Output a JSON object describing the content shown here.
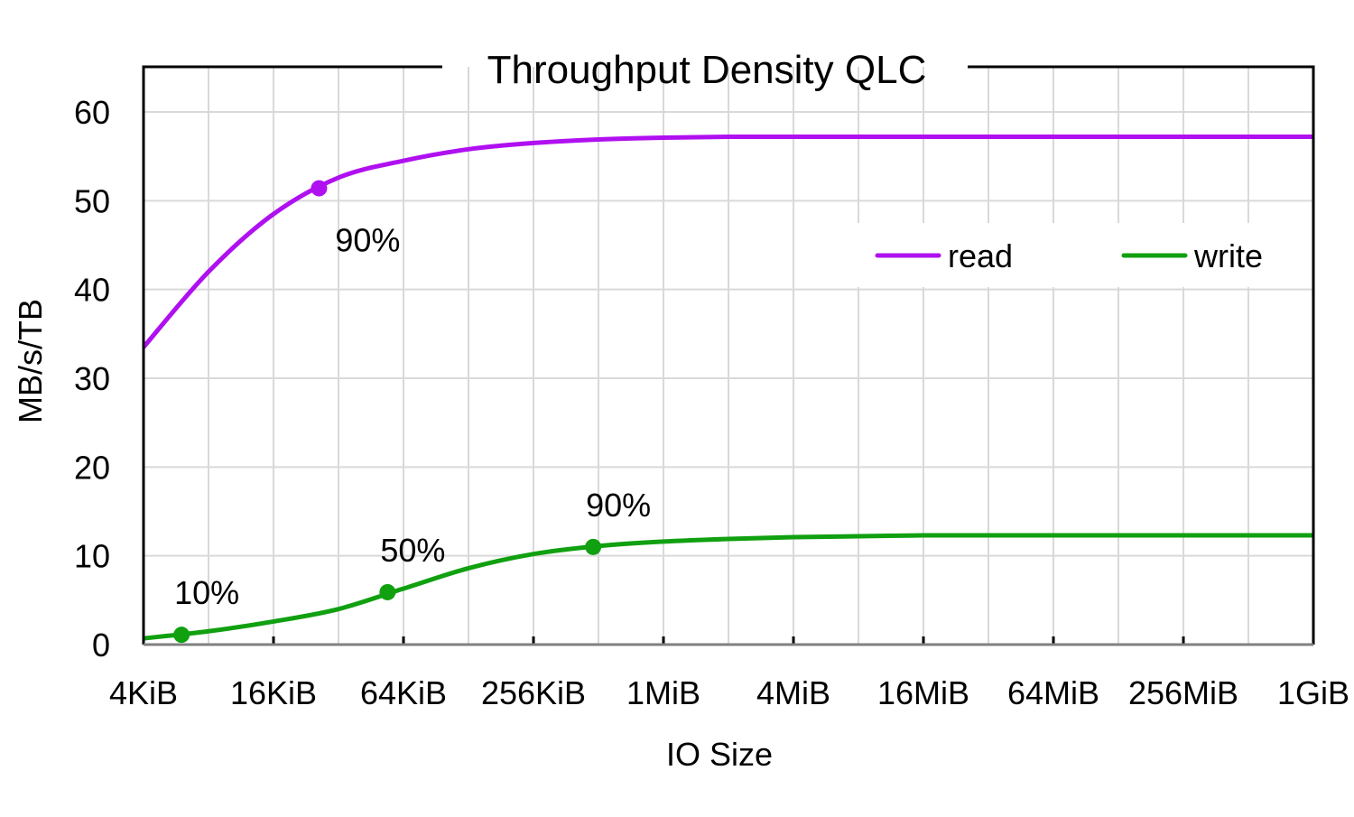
{
  "chart_data": {
    "type": "line",
    "title": "Throughput Density QLC",
    "xlabel": "IO Size",
    "ylabel": "MB/s/TB",
    "x_scale": "log2",
    "x_unit": "KiB",
    "xlim_kib": [
      4,
      1048576
    ],
    "ylim": [
      0,
      60
    ],
    "yticks": [
      0,
      10,
      20,
      30,
      40,
      50,
      60
    ],
    "xtick_labels": [
      "4KiB",
      "16KiB",
      "64KiB",
      "256KiB",
      "1MiB",
      "4MiB",
      "16MiB",
      "64MiB",
      "256MiB",
      "1GiB"
    ],
    "grid": true,
    "legend_position": "top-right",
    "x_kib": [
      4,
      8,
      16,
      32,
      64,
      128,
      256,
      512,
      1024,
      2048,
      4096,
      8192,
      16384,
      32768,
      65536,
      131072,
      262144,
      524288,
      1048576
    ],
    "series": [
      {
        "name": "read",
        "color": "#b010f0",
        "values": [
          33.5,
          42.0,
          48.5,
          52.6,
          54.5,
          55.8,
          56.5,
          56.9,
          57.1,
          57.2,
          57.2,
          57.2,
          57.2,
          57.2,
          57.2,
          57.2,
          57.2,
          57.2,
          57.2
        ],
        "markers": [
          {
            "x_kib": 26,
            "y": 51.4,
            "label": "90%"
          }
        ]
      },
      {
        "name": "write",
        "color": "#10a010",
        "values": [
          0.7,
          1.5,
          2.6,
          4.0,
          6.3,
          8.6,
          10.2,
          11.1,
          11.6,
          11.9,
          12.1,
          12.2,
          12.3,
          12.3,
          12.3,
          12.3,
          12.3,
          12.3,
          12.3
        ],
        "markers": [
          {
            "x_kib": 6,
            "y": 1.1,
            "label": "10%"
          },
          {
            "x_kib": 54,
            "y": 5.9,
            "label": "50%"
          },
          {
            "x_kib": 484,
            "y": 11.0,
            "label": "90%"
          }
        ]
      }
    ]
  }
}
